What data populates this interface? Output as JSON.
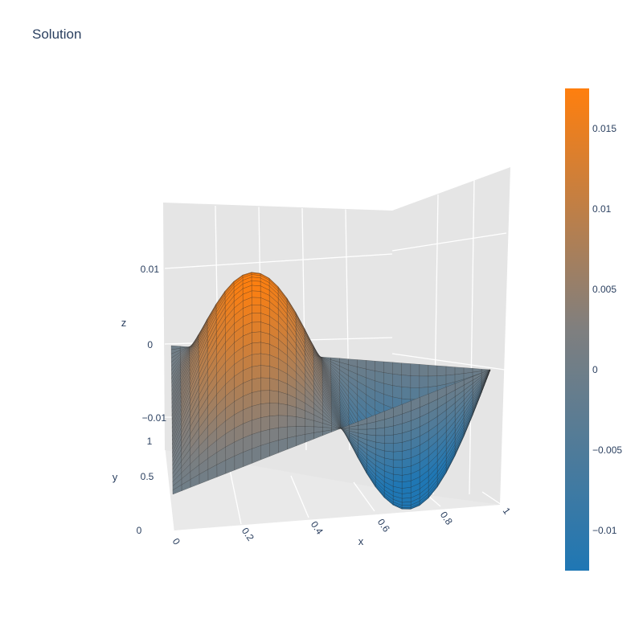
{
  "chart_data": {
    "type": "surface",
    "title": "Solution",
    "x": {
      "label": "x",
      "range": [
        0,
        1
      ],
      "ticks": [
        0,
        0.2,
        0.4,
        0.6,
        0.8,
        1
      ],
      "tick_labels": [
        "0",
        "0.2",
        "0.4",
        "0.6",
        "0.8",
        "1"
      ]
    },
    "y": {
      "label": "y",
      "range": [
        0,
        1
      ],
      "ticks": [
        0,
        0.5,
        1
      ],
      "tick_labels": [
        "0",
        "0.5",
        "1"
      ]
    },
    "z": {
      "label": "z",
      "range": [
        -0.016,
        0.018
      ],
      "ticks": [
        -0.01,
        0,
        0.01
      ],
      "tick_labels": [
        "−0.01",
        "0",
        "0.01"
      ]
    },
    "surface": {
      "equation": "z = 0.0175 * sin(2*pi*x) * sin(pi*y)",
      "x_grid": [
        0,
        0.05,
        0.1,
        0.15,
        0.2,
        0.25,
        0.3,
        0.35,
        0.4,
        0.45,
        0.5,
        0.55,
        0.6,
        0.65,
        0.7,
        0.75,
        0.8,
        0.85,
        0.9,
        0.95,
        1
      ],
      "y_grid": [
        0,
        0.05,
        0.1,
        0.15,
        0.2,
        0.25,
        0.3,
        0.35,
        0.4,
        0.45,
        0.5,
        0.55,
        0.6,
        0.65,
        0.7,
        0.75,
        0.8,
        0.85,
        0.9,
        0.95,
        1
      ],
      "z_min": -0.0175,
      "z_max": 0.0175
    },
    "colorbar": {
      "range": [
        -0.0125,
        0.0175
      ],
      "colors": [
        "#1f77b4",
        "#7f7f7f",
        "#ff7f0e"
      ],
      "ticks": [
        -0.01,
        -0.005,
        0,
        0.005,
        0.01,
        0.015
      ],
      "tick_labels": [
        "−0.01",
        "−0.005",
        "0",
        "0.005",
        "0.01",
        "0.015"
      ]
    },
    "scene_background": "#e5e5e5",
    "grid": true
  }
}
